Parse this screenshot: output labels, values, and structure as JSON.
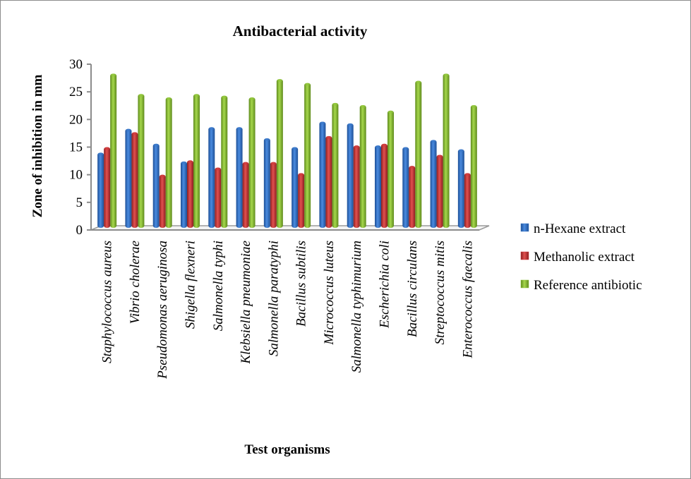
{
  "chart_data": {
    "type": "bar",
    "title": "Antibacterial  activity",
    "xlabel": "Test organisms",
    "ylabel": "Zone of inhibition in mm",
    "ylim": [
      0,
      30
    ],
    "yticks": [
      "0",
      "5",
      "10",
      "15",
      "20",
      "25",
      "30"
    ],
    "grid": false,
    "legend_position": "right",
    "categories": [
      "Staphylococcus aureus",
      "Vibrio cholerae",
      "Pseudomonas aeruginosa",
      "Shigella flexneri",
      "Salmonella typhi",
      "Klebsiella pneumoniae",
      "Salmonella paratyphi",
      "Bacillus subtilis",
      "Micrococcus luteus",
      "Salmonella typhimurium",
      "Escherichia coli",
      "Bacillus circulans",
      "Streptococcus mitis",
      "Enterococcus faecalis"
    ],
    "series": [
      {
        "name": "n-Hexane extract",
        "color": "#3a78c8",
        "values": [
          14,
          18.3,
          15.6,
          12.4,
          18.6,
          18.6,
          16.6,
          15,
          19.6,
          19.3,
          15.3,
          15,
          16.3,
          14.6
        ]
      },
      {
        "name": "Methanolic extract",
        "color": "#d0383a",
        "values": [
          15,
          17.7,
          10,
          12.6,
          11.3,
          12.3,
          12.3,
          10.3,
          17,
          15.3,
          15.6,
          11.6,
          13.6,
          10.3
        ]
      },
      {
        "name": "Reference antibiotic",
        "color": "#8fc43a",
        "values": [
          28.3,
          24.6,
          24,
          24.6,
          24.3,
          24,
          27.3,
          26.6,
          23,
          22.6,
          21.6,
          27,
          28.3,
          22.6
        ]
      }
    ]
  }
}
